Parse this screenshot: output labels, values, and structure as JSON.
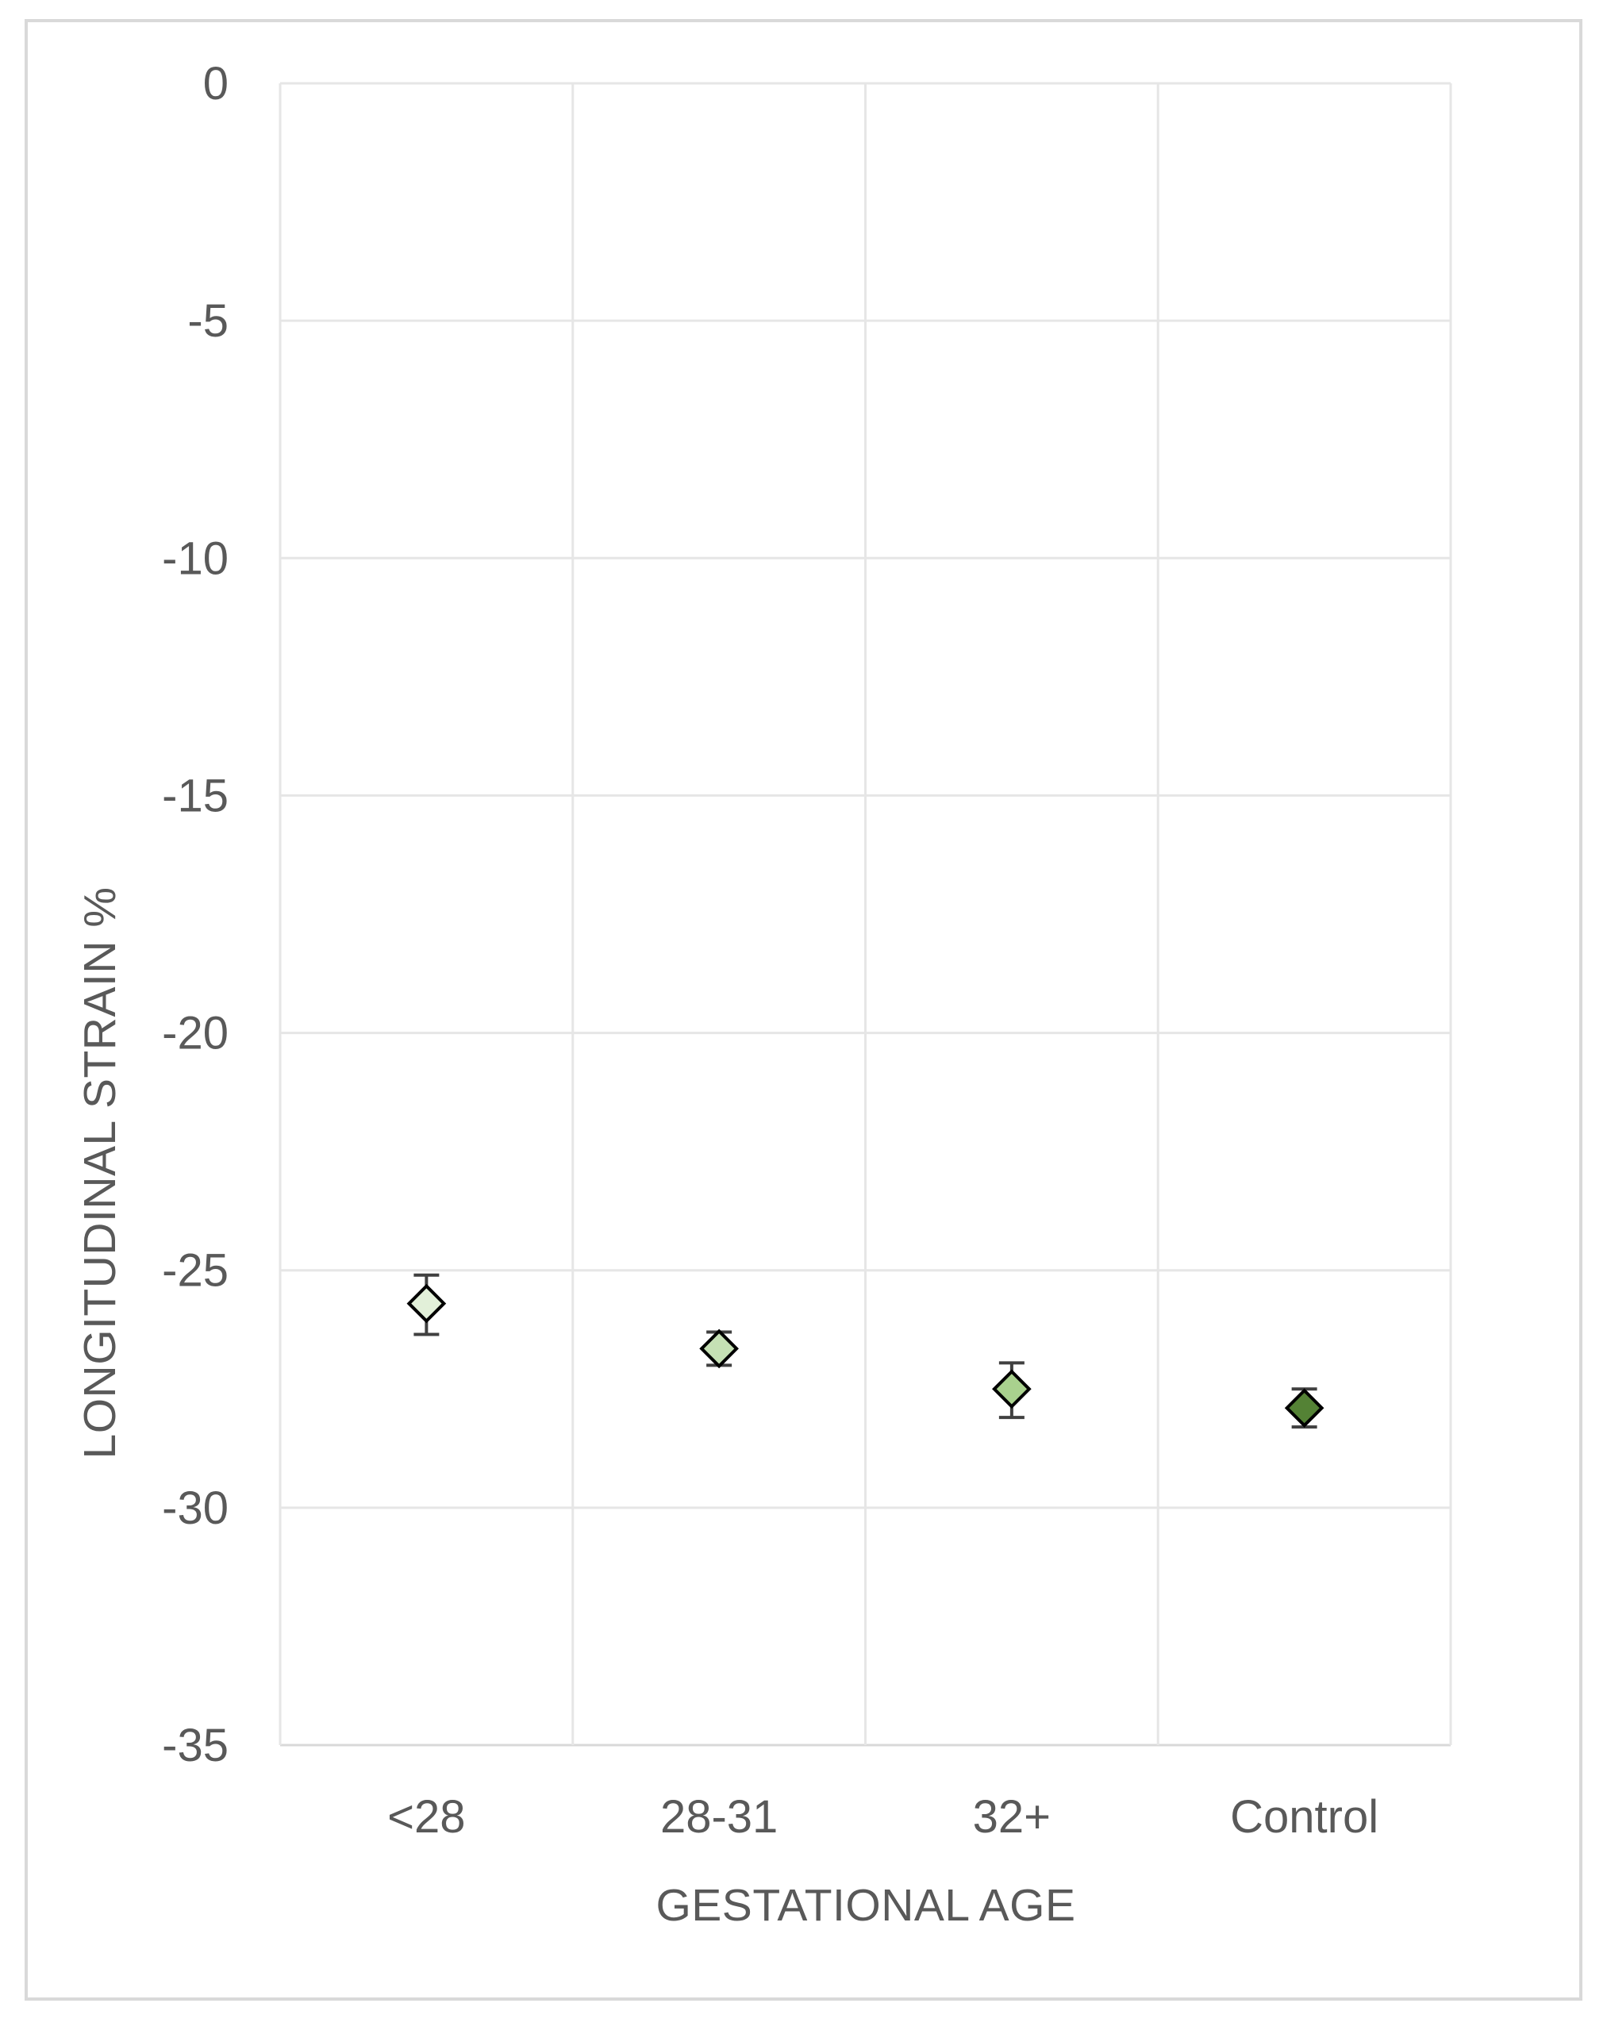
{
  "chart_data": {
    "type": "scatter",
    "categories": [
      "<28",
      "28-31",
      "32+",
      "Control"
    ],
    "values": [
      -25.7,
      -26.65,
      -27.5,
      -27.9
    ],
    "error_low": [
      -26.35,
      -27.0,
      -28.1,
      -28.3
    ],
    "error_high": [
      -25.1,
      -26.3,
      -26.95,
      -27.5
    ],
    "marker_colors": [
      "#e2f0d9",
      "#c5e0b4",
      "#a9d18e",
      "#548235"
    ],
    "marker": "diamond",
    "xlabel": "GESTATIONAL AGE",
    "ylabel": "LONGITUDINAL STRAIN %",
    "ylim": [
      -35,
      0
    ],
    "yticks": [
      0,
      -5,
      -10,
      -15,
      -20,
      -25,
      -30,
      -35
    ],
    "ytick_labels": [
      "0",
      "-5",
      "-10",
      "-15",
      "-20",
      "-25",
      "-30",
      "-35"
    ],
    "grid": true,
    "grid_color": "#e6e6e6",
    "axis_color": "#d9d9d9",
    "marker_edge_color": "#000000",
    "errorbar_color": "#404040"
  }
}
